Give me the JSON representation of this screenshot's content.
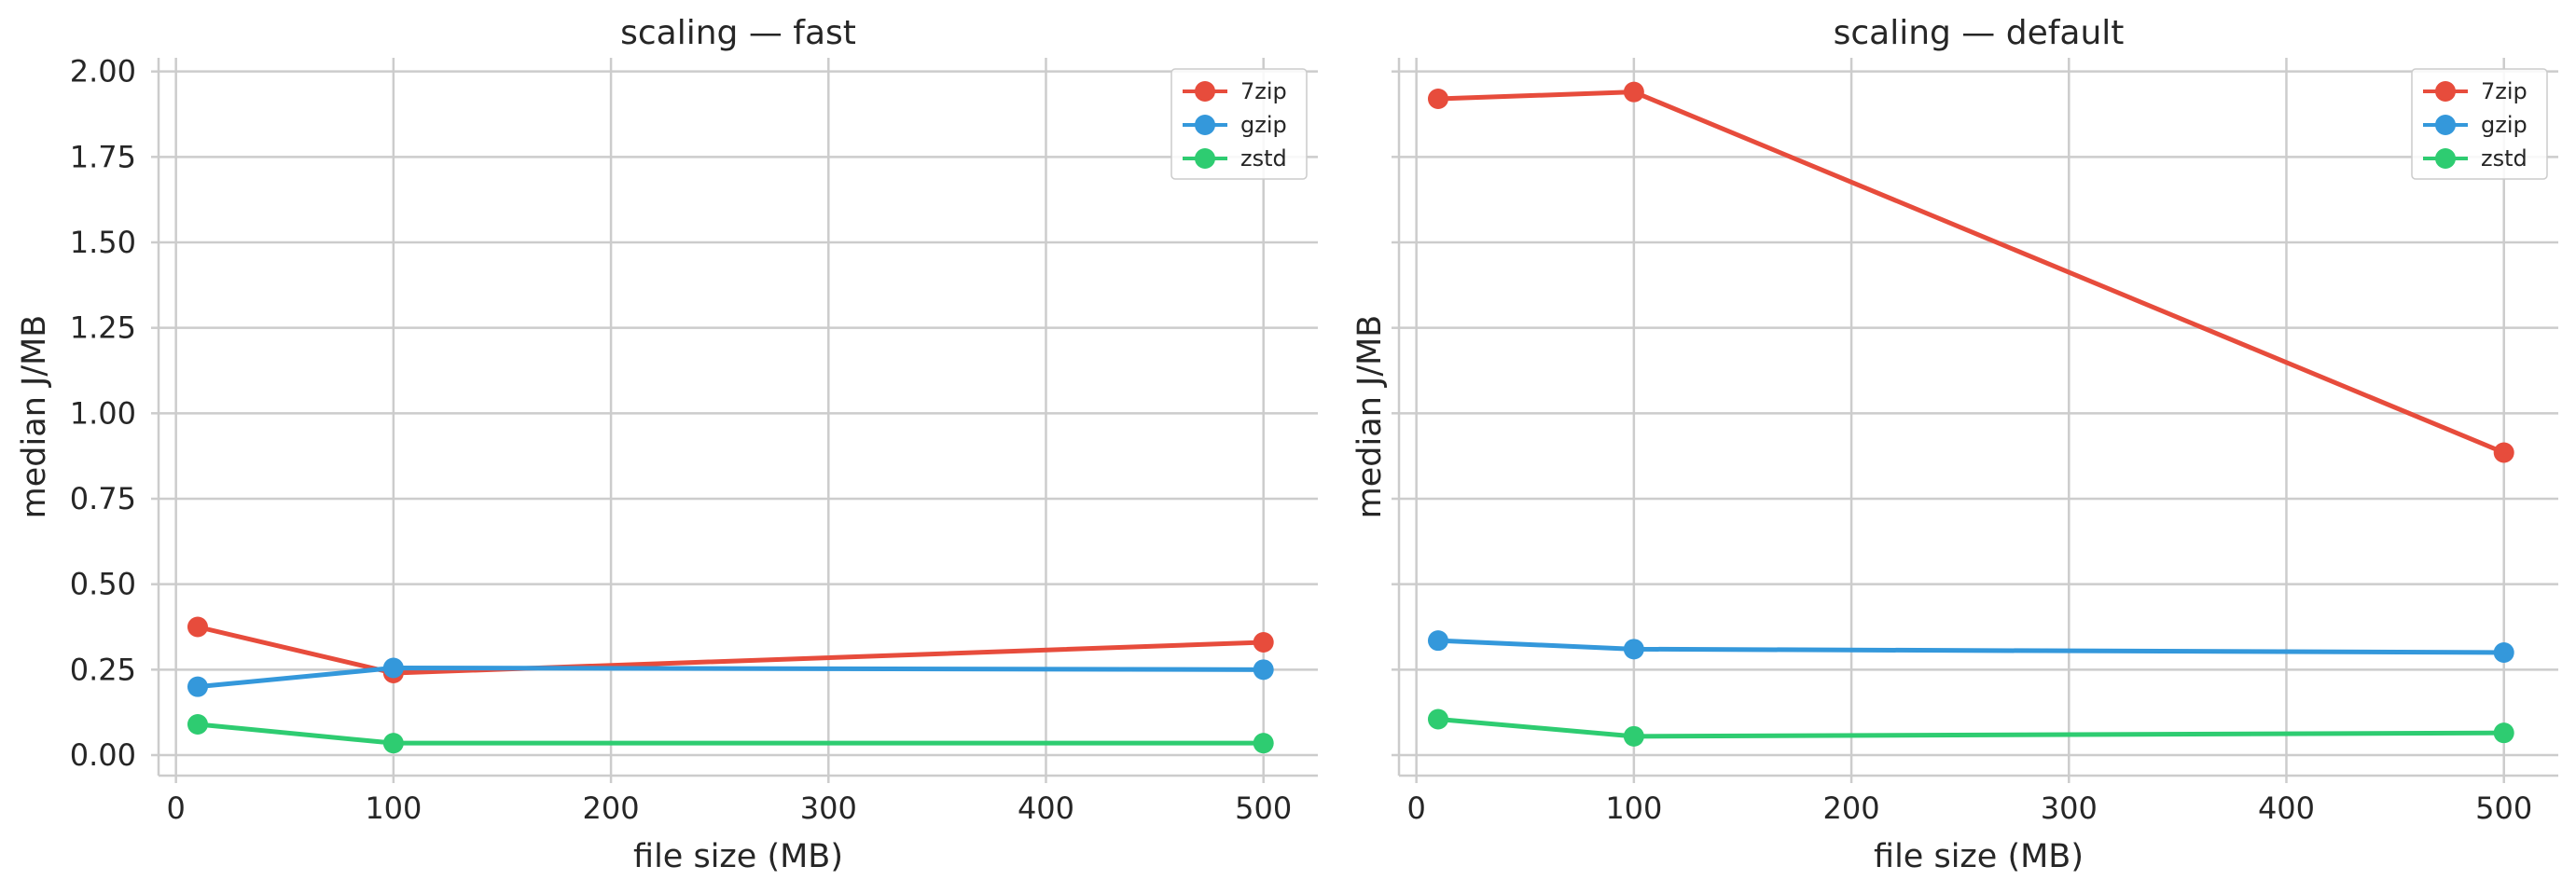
{
  "chart_data": [
    {
      "type": "line",
      "title": "scaling — fast",
      "xlabel": "file size (MB)",
      "ylabel": "median J/MB",
      "xlim": [
        -8,
        525
      ],
      "ylim": [
        -0.06,
        2.04
      ],
      "xticks": [
        0,
        100,
        200,
        300,
        400,
        500
      ],
      "xtick_labels": [
        "0",
        "100",
        "200",
        "300",
        "400",
        "500"
      ],
      "yticks": [
        0.0,
        0.25,
        0.5,
        0.75,
        1.0,
        1.25,
        1.5,
        1.75,
        2.0
      ],
      "ytick_labels": [
        "0.00",
        "0.25",
        "0.50",
        "0.75",
        "1.00",
        "1.25",
        "1.50",
        "1.75",
        "2.00"
      ],
      "grid": true,
      "legend_position": "top-right",
      "x": [
        10,
        100,
        500
      ],
      "series": [
        {
          "name": "7zip",
          "color": "#e74c3c",
          "values": [
            0.375,
            0.24,
            0.33
          ]
        },
        {
          "name": "gzip",
          "color": "#3498db",
          "values": [
            0.2,
            0.255,
            0.25
          ]
        },
        {
          "name": "zstd",
          "color": "#2ecc71",
          "values": [
            0.09,
            0.035,
            0.035
          ]
        }
      ]
    },
    {
      "type": "line",
      "title": "scaling — default",
      "xlabel": "file size (MB)",
      "ylabel": "median J/MB",
      "xlim": [
        -8,
        525
      ],
      "ylim": [
        -0.06,
        2.04
      ],
      "xticks": [
        0,
        100,
        200,
        300,
        400,
        500
      ],
      "xtick_labels": [
        "0",
        "100",
        "200",
        "300",
        "400",
        "500"
      ],
      "yticks": [
        0.0,
        0.25,
        0.5,
        0.75,
        1.0,
        1.25,
        1.5,
        1.75,
        2.0
      ],
      "ytick_labels": [
        "",
        "",
        "",
        "",
        "",
        "",
        "",
        "",
        ""
      ],
      "grid": true,
      "legend_position": "top-right",
      "x": [
        10,
        100,
        500
      ],
      "series": [
        {
          "name": "7zip",
          "color": "#e74c3c",
          "values": [
            1.92,
            1.94,
            0.885
          ]
        },
        {
          "name": "gzip",
          "color": "#3498db",
          "values": [
            0.335,
            0.31,
            0.3
          ]
        },
        {
          "name": "zstd",
          "color": "#2ecc71",
          "values": [
            0.105,
            0.055,
            0.065
          ]
        }
      ]
    }
  ]
}
